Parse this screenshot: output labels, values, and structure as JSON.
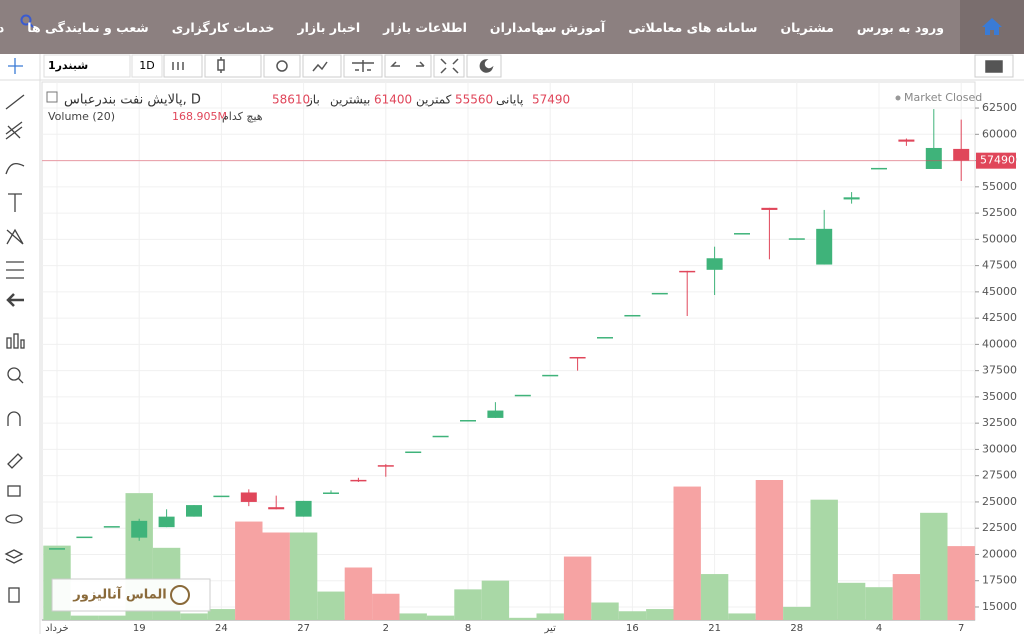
{
  "nav": {
    "items": [
      "ورود به بورس",
      "مشتریان",
      "سامانه های معاملاتی",
      "آموزش سهامداران",
      "اطلاعات بازار",
      "اخبار بازار",
      "خدمات کارگزاری",
      "شعب و نمایندگی ها",
      "درباره ما"
    ]
  },
  "toolbar": {
    "symbol": "شبندر1",
    "interval": "1D"
  },
  "legend": {
    "title": "پالایش نفت بندرعباس, D",
    "open_label": "باز",
    "high_label": "بیشترین",
    "low_label": "کمترین",
    "close_label": "پایانی",
    "volume_title": "Volume (20)",
    "none": "هیچ کدام",
    "status": "Market Closed"
  },
  "watermark": "الماس آنالیزور",
  "chart": {
    "type": "candlestick",
    "categories": [
      "خرداد",
      null,
      null,
      "19",
      null,
      null,
      "24",
      null,
      null,
      "27",
      null,
      null,
      "2",
      null,
      null,
      "8",
      null,
      null,
      "تیر",
      null,
      null,
      "16",
      null,
      null,
      "21",
      null,
      null,
      "28",
      null,
      null,
      "4",
      null,
      null,
      "7"
    ],
    "open": [
      20600,
      21700,
      22700,
      21600,
      22600,
      23600,
      25600,
      25900,
      24500,
      23600,
      25900,
      27100,
      28500,
      29800,
      31300,
      32800,
      33000,
      35200,
      37100,
      38800,
      40700,
      42800,
      44900,
      47000,
      47100,
      50600,
      53000,
      50100,
      47600,
      53800,
      56800,
      59500,
      56700,
      58610
    ],
    "high": [
      20600,
      21700,
      22700,
      23400,
      24300,
      24700,
      25600,
      26200,
      25600,
      25100,
      26100,
      27300,
      28600,
      29800,
      31300,
      32800,
      34500,
      35200,
      37100,
      38800,
      40700,
      42800,
      44900,
      47000,
      49300,
      50600,
      53000,
      50100,
      52800,
      54500,
      56800,
      59600,
      62400,
      61400
    ],
    "low": [
      20600,
      21700,
      22700,
      21300,
      22600,
      23600,
      25600,
      24600,
      24300,
      23600,
      25800,
      26900,
      27400,
      29800,
      31300,
      32800,
      33000,
      35200,
      37100,
      37500,
      40700,
      42800,
      44900,
      42700,
      44700,
      50600,
      48100,
      50100,
      47600,
      53400,
      56800,
      58900,
      56700,
      55560
    ],
    "close": [
      20600,
      21700,
      22700,
      23200,
      23600,
      24700,
      25600,
      25000,
      24300,
      25100,
      25900,
      27000,
      28400,
      29800,
      31300,
      32800,
      33700,
      35200,
      37100,
      38700,
      40700,
      42800,
      44900,
      46900,
      48200,
      50600,
      52800,
      50100,
      51000,
      54000,
      56800,
      59300,
      58700,
      57490
    ],
    "volume": [
      170,
      10,
      10,
      290,
      165,
      15,
      25,
      225,
      200,
      200,
      65,
      120,
      60,
      15,
      10,
      70,
      90,
      5,
      15,
      145,
      40,
      20,
      25,
      305,
      105,
      15,
      320,
      30,
      275,
      85,
      75,
      105,
      245,
      168.905
    ],
    "volume_label": "168.905M",
    "up_color": "#3fb37a",
    "down_color": "#e0465a",
    "up_volume_color": "#a9d8a6",
    "down_volume_color": "#f6a3a3",
    "ylim": [
      13760,
      64980
    ],
    "yticks": [
      15000,
      17500,
      20000,
      22500,
      25000,
      27500,
      30000,
      32500,
      35000,
      37500,
      40000,
      42500,
      45000,
      47500,
      50000,
      52500,
      55000,
      57500,
      60000,
      62500
    ],
    "grid": true
  }
}
